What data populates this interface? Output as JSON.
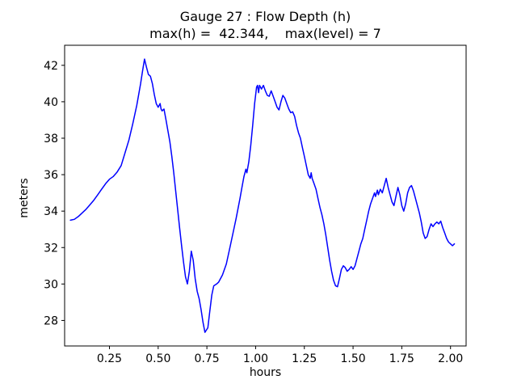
{
  "window": {
    "background": "#ffffff"
  },
  "chart_data": {
    "type": "line",
    "title": "Gauge 27 : Flow Depth (h)",
    "subtitle": "max(h) =  42.344,    max(level) = 7",
    "xlabel": "hours",
    "ylabel": "meters",
    "xlim": [
      0.02,
      2.08
    ],
    "ylim": [
      26.6,
      43.1
    ],
    "xticks": [
      0.25,
      0.5,
      0.75,
      1.0,
      1.25,
      1.5,
      1.75,
      2.0
    ],
    "xtick_labels": [
      "0.25",
      "0.50",
      "0.75",
      "1.00",
      "1.25",
      "1.50",
      "1.75",
      "2.00"
    ],
    "yticks": [
      28,
      30,
      32,
      34,
      36,
      38,
      40,
      42
    ],
    "ytick_labels": [
      "28",
      "30",
      "32",
      "34",
      "36",
      "38",
      "40",
      "42"
    ],
    "grid": false,
    "legend": "none",
    "line_color": "#0000ff",
    "axes_color": "#000000",
    "series": [
      {
        "name": "h",
        "points": [
          [
            0.05,
            33.5
          ],
          [
            0.07,
            33.55
          ],
          [
            0.09,
            33.7
          ],
          [
            0.11,
            33.9
          ],
          [
            0.13,
            34.1
          ],
          [
            0.15,
            34.35
          ],
          [
            0.17,
            34.6
          ],
          [
            0.19,
            34.9
          ],
          [
            0.21,
            35.2
          ],
          [
            0.23,
            35.5
          ],
          [
            0.25,
            35.75
          ],
          [
            0.27,
            35.9
          ],
          [
            0.29,
            36.15
          ],
          [
            0.31,
            36.5
          ],
          [
            0.33,
            37.2
          ],
          [
            0.35,
            37.9
          ],
          [
            0.37,
            38.8
          ],
          [
            0.39,
            39.8
          ],
          [
            0.41,
            41.0
          ],
          [
            0.42,
            41.7
          ],
          [
            0.43,
            42.34
          ],
          [
            0.44,
            41.9
          ],
          [
            0.45,
            41.5
          ],
          [
            0.46,
            41.4
          ],
          [
            0.47,
            41.0
          ],
          [
            0.48,
            40.4
          ],
          [
            0.49,
            39.9
          ],
          [
            0.5,
            39.7
          ],
          [
            0.51,
            39.9
          ],
          [
            0.515,
            39.6
          ],
          [
            0.52,
            39.5
          ],
          [
            0.53,
            39.6
          ],
          [
            0.54,
            39.0
          ],
          [
            0.55,
            38.4
          ],
          [
            0.56,
            37.8
          ],
          [
            0.57,
            37.0
          ],
          [
            0.58,
            36.1
          ],
          [
            0.59,
            35.1
          ],
          [
            0.6,
            34.1
          ],
          [
            0.61,
            33.1
          ],
          [
            0.62,
            32.1
          ],
          [
            0.63,
            31.2
          ],
          [
            0.64,
            30.4
          ],
          [
            0.65,
            30.0
          ],
          [
            0.66,
            30.7
          ],
          [
            0.67,
            31.8
          ],
          [
            0.68,
            31.3
          ],
          [
            0.69,
            30.3
          ],
          [
            0.7,
            29.6
          ],
          [
            0.71,
            29.2
          ],
          [
            0.72,
            28.6
          ],
          [
            0.73,
            27.9
          ],
          [
            0.74,
            27.35
          ],
          [
            0.755,
            27.6
          ],
          [
            0.765,
            28.5
          ],
          [
            0.775,
            29.4
          ],
          [
            0.785,
            29.9
          ],
          [
            0.8,
            30.0
          ],
          [
            0.81,
            30.1
          ],
          [
            0.83,
            30.5
          ],
          [
            0.85,
            31.1
          ],
          [
            0.87,
            32.1
          ],
          [
            0.89,
            33.1
          ],
          [
            0.9,
            33.6
          ],
          [
            0.92,
            34.7
          ],
          [
            0.93,
            35.3
          ],
          [
            0.94,
            35.9
          ],
          [
            0.95,
            36.3
          ],
          [
            0.955,
            36.1
          ],
          [
            0.965,
            36.7
          ],
          [
            0.975,
            37.6
          ],
          [
            0.985,
            38.7
          ],
          [
            0.995,
            39.9
          ],
          [
            1.005,
            40.8
          ],
          [
            1.01,
            40.9
          ],
          [
            1.015,
            40.5
          ],
          [
            1.02,
            40.9
          ],
          [
            1.03,
            40.7
          ],
          [
            1.04,
            40.9
          ],
          [
            1.05,
            40.6
          ],
          [
            1.06,
            40.35
          ],
          [
            1.07,
            40.3
          ],
          [
            1.08,
            40.6
          ],
          [
            1.09,
            40.3
          ],
          [
            1.1,
            40.0
          ],
          [
            1.11,
            39.7
          ],
          [
            1.12,
            39.55
          ],
          [
            1.13,
            40.0
          ],
          [
            1.14,
            40.35
          ],
          [
            1.15,
            40.2
          ],
          [
            1.16,
            39.9
          ],
          [
            1.17,
            39.6
          ],
          [
            1.18,
            39.4
          ],
          [
            1.19,
            39.45
          ],
          [
            1.2,
            39.2
          ],
          [
            1.21,
            38.7
          ],
          [
            1.22,
            38.3
          ],
          [
            1.23,
            38.0
          ],
          [
            1.24,
            37.5
          ],
          [
            1.25,
            37.0
          ],
          [
            1.26,
            36.5
          ],
          [
            1.27,
            36.0
          ],
          [
            1.28,
            35.8
          ],
          [
            1.285,
            36.1
          ],
          [
            1.29,
            35.8
          ],
          [
            1.3,
            35.5
          ],
          [
            1.31,
            35.2
          ],
          [
            1.32,
            34.7
          ],
          [
            1.33,
            34.2
          ],
          [
            1.34,
            33.8
          ],
          [
            1.35,
            33.3
          ],
          [
            1.36,
            32.7
          ],
          [
            1.37,
            32.0
          ],
          [
            1.38,
            31.3
          ],
          [
            1.39,
            30.7
          ],
          [
            1.4,
            30.2
          ],
          [
            1.41,
            29.9
          ],
          [
            1.42,
            29.85
          ],
          [
            1.43,
            30.3
          ],
          [
            1.44,
            30.8
          ],
          [
            1.45,
            31.0
          ],
          [
            1.46,
            30.9
          ],
          [
            1.47,
            30.7
          ],
          [
            1.48,
            30.8
          ],
          [
            1.49,
            30.95
          ],
          [
            1.5,
            30.8
          ],
          [
            1.51,
            31.0
          ],
          [
            1.52,
            31.4
          ],
          [
            1.53,
            31.8
          ],
          [
            1.54,
            32.2
          ],
          [
            1.55,
            32.5
          ],
          [
            1.56,
            33.0
          ],
          [
            1.57,
            33.5
          ],
          [
            1.58,
            34.0
          ],
          [
            1.59,
            34.4
          ],
          [
            1.6,
            34.7
          ],
          [
            1.61,
            35.0
          ],
          [
            1.615,
            34.8
          ],
          [
            1.625,
            35.15
          ],
          [
            1.63,
            34.9
          ],
          [
            1.64,
            35.2
          ],
          [
            1.65,
            35.0
          ],
          [
            1.66,
            35.4
          ],
          [
            1.67,
            35.8
          ],
          [
            1.68,
            35.3
          ],
          [
            1.69,
            34.9
          ],
          [
            1.7,
            34.5
          ],
          [
            1.71,
            34.3
          ],
          [
            1.72,
            34.8
          ],
          [
            1.73,
            35.3
          ],
          [
            1.74,
            34.9
          ],
          [
            1.75,
            34.3
          ],
          [
            1.76,
            34.0
          ],
          [
            1.77,
            34.4
          ],
          [
            1.78,
            35.0
          ],
          [
            1.79,
            35.3
          ],
          [
            1.8,
            35.4
          ],
          [
            1.81,
            35.1
          ],
          [
            1.82,
            34.7
          ],
          [
            1.83,
            34.3
          ],
          [
            1.84,
            33.9
          ],
          [
            1.85,
            33.4
          ],
          [
            1.86,
            32.8
          ],
          [
            1.87,
            32.5
          ],
          [
            1.88,
            32.6
          ],
          [
            1.89,
            33.0
          ],
          [
            1.9,
            33.3
          ],
          [
            1.91,
            33.15
          ],
          [
            1.92,
            33.3
          ],
          [
            1.93,
            33.4
          ],
          [
            1.94,
            33.3
          ],
          [
            1.95,
            33.45
          ],
          [
            1.96,
            33.1
          ],
          [
            1.97,
            32.8
          ],
          [
            1.98,
            32.5
          ],
          [
            1.99,
            32.3
          ],
          [
            2.0,
            32.2
          ],
          [
            2.01,
            32.1
          ],
          [
            2.02,
            32.2
          ]
        ]
      }
    ]
  }
}
